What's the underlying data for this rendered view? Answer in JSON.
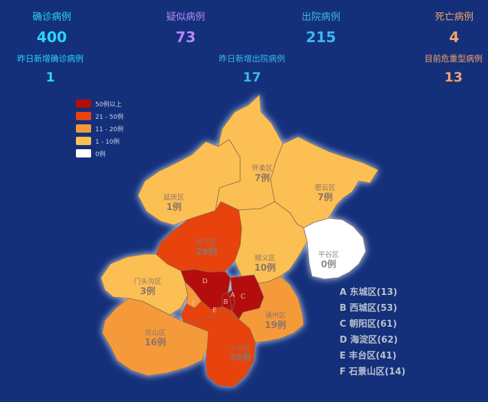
{
  "stats": {
    "confirmed": {
      "label": "确诊病例",
      "value": "400",
      "color": "#29d4ff"
    },
    "suspected": {
      "label": "疑似病例",
      "value": "73",
      "color": "#b686ff"
    },
    "discharged": {
      "label": "出院病例",
      "value": "215",
      "color": "#3ab8f0"
    },
    "deaths": {
      "label": "死亡病例",
      "value": "4",
      "color": "#f4a26b"
    },
    "new_confirmed": {
      "label": "昨日新增确诊病例",
      "value": "1",
      "color": "#29d4ff"
    },
    "new_discharged": {
      "label": "昨日新增出院病例",
      "value": "17",
      "color": "#3ab8f0"
    },
    "critical": {
      "label": "目前危重型病例",
      "value": "13",
      "color": "#f4a26b"
    }
  },
  "legend": [
    {
      "label": "50例以上",
      "color": "#b50c0c"
    },
    {
      "label": "21 - 50例",
      "color": "#e8430f"
    },
    {
      "label": "11 - 20例",
      "color": "#f59a3a"
    },
    {
      "label": "1 - 10例",
      "color": "#fbbf52"
    },
    {
      "label": "0例",
      "color": "#ffffff"
    }
  ],
  "districts": {
    "huairou": {
      "name": "怀柔区",
      "count": "7例"
    },
    "miyun": {
      "name": "密云区",
      "count": "7例"
    },
    "yanqing": {
      "name": "延庆区",
      "count": "1例"
    },
    "changping": {
      "name": "昌平区",
      "count": "29例"
    },
    "shunyi": {
      "name": "顺义区",
      "count": "10例"
    },
    "pinggu": {
      "name": "平谷区",
      "count": "0例"
    },
    "mentougou": {
      "name": "门头沟区",
      "count": "3例"
    },
    "fangshan": {
      "name": "房山区",
      "count": "16例"
    },
    "daxing": {
      "name": "大兴区",
      "count": "39例"
    },
    "tongzhou": {
      "name": "通州区",
      "count": "19例"
    }
  },
  "core_letters": {
    "a": "A",
    "b": "B",
    "c": "C",
    "d": "D",
    "e": "E",
    "f": "F"
  },
  "core_list": [
    "A 东城区(13)",
    "B 西城区(53)",
    "C 朝阳区(61)",
    "D 海淀区(62)",
    "E 丰台区(41)",
    "F 石景山区(14)"
  ]
}
